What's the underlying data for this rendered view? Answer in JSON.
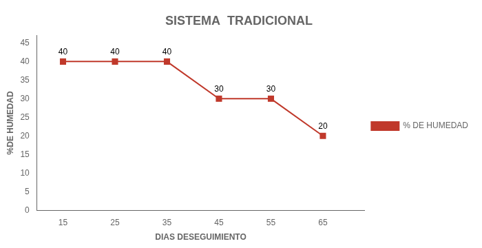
{
  "chart_data": {
    "type": "line",
    "title": "SISTEMA  TRADICIONAL",
    "x_label": "DIAS DESEGUIMIENTO",
    "y_label": "%DE HUMEDAD",
    "x": [
      15,
      25,
      35,
      45,
      55,
      65
    ],
    "series": [
      {
        "name": "% DE HUMEDAD",
        "color": "#c0392b",
        "marker": "square",
        "values": [
          40,
          40,
          40,
          30,
          30,
          20
        ]
      }
    ],
    "xlim": [
      10,
      73
    ],
    "xticks": [
      15,
      25,
      35,
      45,
      55,
      65
    ],
    "ylim": [
      0,
      47
    ],
    "yticks": [
      0,
      5,
      10,
      15,
      20,
      25,
      30,
      35,
      40,
      45
    ],
    "grid": false,
    "legend": "right",
    "data_labels": true
  }
}
